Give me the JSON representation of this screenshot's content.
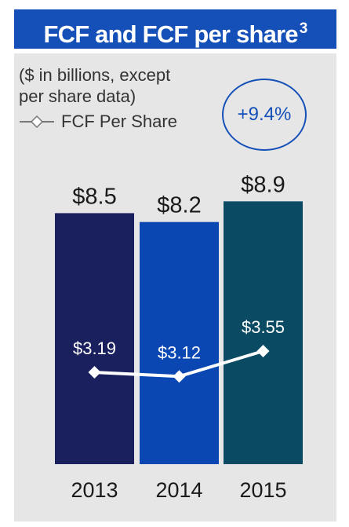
{
  "header": {
    "title": "FCF and FCF per share",
    "footnote": "3"
  },
  "subtitle_lines": [
    "($ in billions, except",
    "per share data)"
  ],
  "legend": {
    "label": "FCF Per Share"
  },
  "growth_badge": "+9.4%",
  "chart_data": {
    "type": "bar",
    "categories": [
      "2013",
      "2014",
      "2015"
    ],
    "series": [
      {
        "name": "FCF",
        "values": [
          8.5,
          8.2,
          8.9
        ],
        "labels": [
          "$8.5",
          "$8.2",
          "$8.9"
        ],
        "colors": [
          "#1a1f5e",
          "#0a47b3",
          "#0a4a63"
        ]
      },
      {
        "name": "FCF Per Share",
        "type": "line",
        "values": [
          3.19,
          3.12,
          3.55
        ],
        "labels": [
          "$3.19",
          "$3.12",
          "$3.55"
        ],
        "color": "#ffffff"
      }
    ],
    "title": "FCF and FCF per share",
    "xlabel": "",
    "ylabel": "",
    "grid": false,
    "legend_position": "top-left"
  }
}
